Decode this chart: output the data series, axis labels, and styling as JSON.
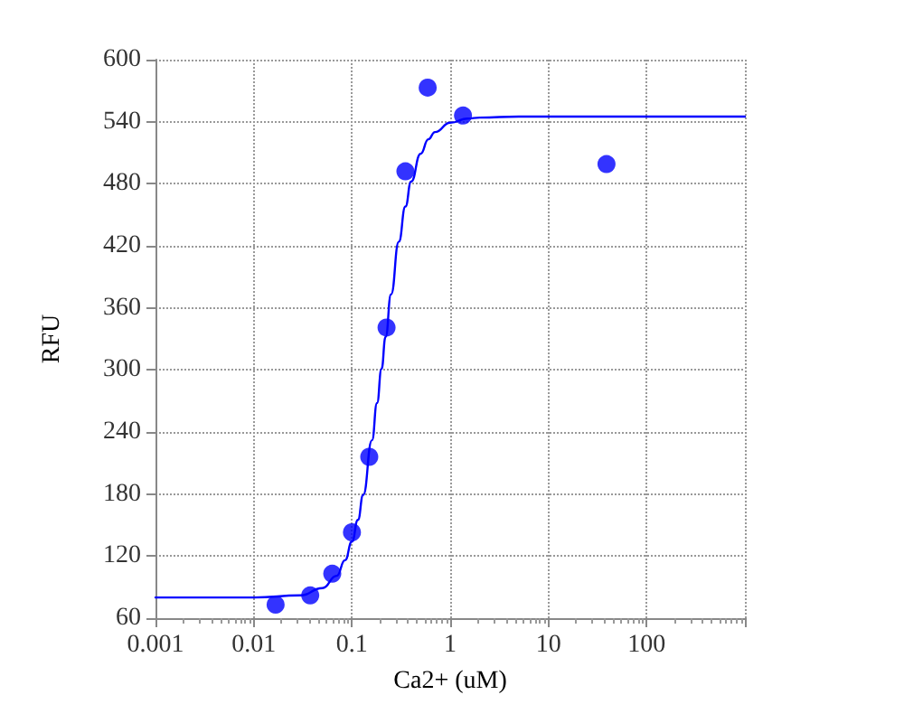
{
  "chart_data": {
    "type": "scatter",
    "xlabel": "Ca2+ (uM)",
    "ylabel": "RFU",
    "log": "x",
    "grid": true,
    "xlim": [
      0.001,
      1000
    ],
    "xticks": [
      0.001,
      0.01,
      0.1,
      1,
      10,
      100,
      {
        "value": 1000,
        "label": null
      }
    ],
    "ylim": [
      60,
      600
    ],
    "yticks": [
      60,
      120,
      180,
      240,
      300,
      360,
      420,
      480,
      540,
      600
    ],
    "series": [
      {
        "color": "#0000ff",
        "marker": "circle",
        "x": [
          0.0167,
          0.0376,
          0.063,
          0.1,
          0.15,
          0.225,
          0.35,
          0.59,
          1.35,
          39
        ],
        "values": [
          73,
          82,
          103,
          143,
          216,
          341,
          492,
          573,
          546,
          499
        ]
      },
      {
        "type": "line",
        "color": "#0000ff",
        "marker": "none",
        "line_style": "solid",
        "x": [
          0.001,
          0.01,
          0.03,
          0.05,
          0.07,
          0.085,
          0.1,
          0.115,
          0.13,
          0.16,
          0.18,
          0.2,
          0.22,
          0.25,
          0.3,
          0.35,
          0.4,
          0.5,
          0.6,
          0.7,
          1,
          1.5,
          2,
          5,
          1000
        ],
        "values": [
          80,
          80,
          82,
          89,
          101,
          116,
          134,
          155,
          179,
          232,
          268,
          301,
          332,
          373,
          424,
          458,
          482,
          509,
          523,
          530,
          539,
          543,
          544,
          545,
          545
        ]
      }
    ]
  }
}
